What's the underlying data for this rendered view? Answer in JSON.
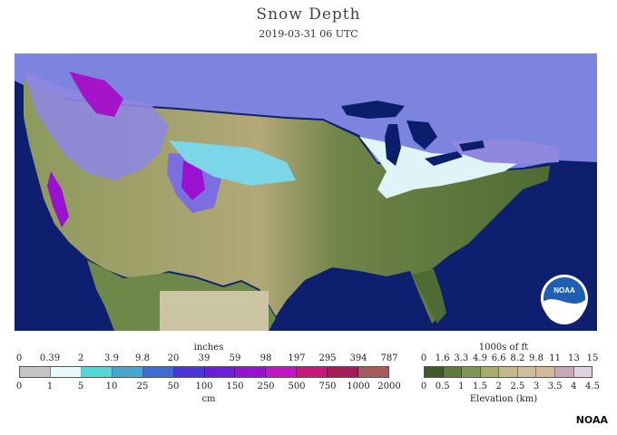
{
  "header": {
    "title": "Snow Depth",
    "subtitle": "2019-03-31 06 UTC"
  },
  "snow_legend": {
    "unit_top": "inches",
    "unit_bottom": "cm",
    "top_ticks": [
      "0",
      "0.39",
      "2",
      "3.9",
      "9.8",
      "20",
      "39",
      "59",
      "98",
      "197",
      "295",
      "394",
      "787"
    ],
    "bottom_ticks": [
      "0",
      "1",
      "5",
      "10",
      "25",
      "50",
      "100",
      "150",
      "250",
      "500",
      "750",
      "1000",
      "2000"
    ],
    "colors": [
      "#c4c4c4",
      "#e8fbfb",
      "#55d7d7",
      "#45a7cf",
      "#3f6ad8",
      "#4a36d8",
      "#6c1fd8",
      "#9a12d0",
      "#c414c8",
      "#c8197a",
      "#a61a5a",
      "#a85a5a"
    ]
  },
  "elevation_legend": {
    "unit_top": "1000s of ft",
    "unit_bottom": "Elevation (km)",
    "top_ticks": [
      "0",
      "1.6",
      "3.3",
      "4.9",
      "6.6",
      "8.2",
      "9.8",
      "11",
      "13",
      "15"
    ],
    "bottom_ticks": [
      "0",
      "0.5",
      "1",
      "1.5",
      "2",
      "2.5",
      "3",
      "3.5",
      "4",
      "4.5"
    ],
    "colors": [
      "#3e5a2a",
      "#617a3e",
      "#7f9754",
      "#a8ad6e",
      "#c4b988",
      "#cfbf98",
      "#d4b89a",
      "#c9a7b5",
      "#e0d2e0"
    ]
  },
  "map": {
    "ocean_color": "#0f1f70",
    "lake_color": "#0c1d6b",
    "logo_text": "NOAA"
  },
  "credit": "NOAA"
}
